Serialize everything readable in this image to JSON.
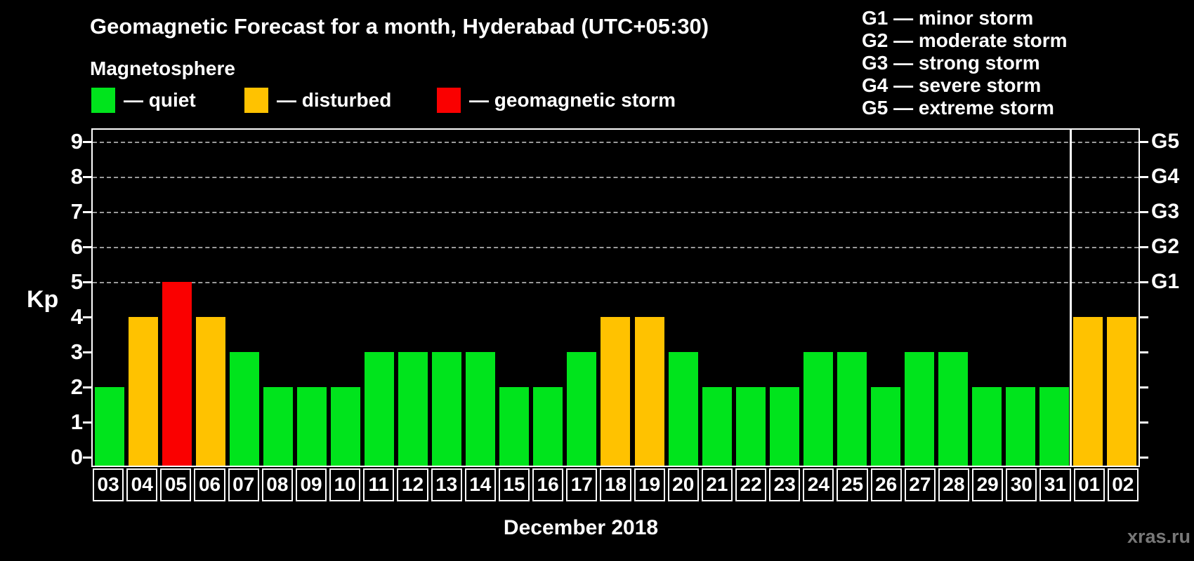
{
  "header": {
    "title": "Geomagnetic Forecast for a month, Hyderabad (UTC+05:30)",
    "subtitle": "Magnetosphere",
    "watermark": "xras.ru"
  },
  "colors": {
    "quiet": "#00e41c",
    "disturbed": "#ffc200",
    "storm": "#fa0000",
    "gridline": "#9a9a9a",
    "axis": "#ffffff",
    "background": "#000000"
  },
  "legend": {
    "items": [
      {
        "status": "quiet",
        "label": "— quiet"
      },
      {
        "status": "disturbed",
        "label": "— disturbed"
      },
      {
        "status": "storm",
        "label": "— geomagnetic storm"
      }
    ]
  },
  "storm_scale_legend": {
    "items": [
      "G1 — minor storm",
      "G2 — moderate storm",
      "G3 — strong storm",
      "G4 — severe storm",
      "G5 — extreme storm"
    ]
  },
  "chart_data": {
    "type": "bar",
    "title": "Geomagnetic Forecast for a month, Hyderabad (UTC+05:30)",
    "xlabel": "December 2018",
    "ylabel": "Kp",
    "ylim": [
      0,
      9
    ],
    "yticks": [
      0,
      1,
      2,
      3,
      4,
      5,
      6,
      7,
      8,
      9
    ],
    "gridlines_at": [
      5,
      6,
      7,
      8,
      9
    ],
    "grid": "dashed horizontal at storm levels only",
    "legend_position": "top",
    "categories": [
      "03",
      "04",
      "05",
      "06",
      "07",
      "08",
      "09",
      "10",
      "11",
      "12",
      "13",
      "14",
      "15",
      "16",
      "17",
      "18",
      "19",
      "20",
      "21",
      "22",
      "23",
      "24",
      "25",
      "26",
      "27",
      "28",
      "29",
      "30",
      "31",
      "01",
      "02"
    ],
    "values": [
      2,
      4,
      5,
      4,
      3,
      2,
      2,
      2,
      3,
      3,
      3,
      3,
      2,
      2,
      3,
      4,
      4,
      3,
      2,
      2,
      2,
      3,
      3,
      2,
      3,
      3,
      2,
      2,
      2,
      4,
      4
    ],
    "statuses": [
      "quiet",
      "disturbed",
      "storm",
      "disturbed",
      "quiet",
      "quiet",
      "quiet",
      "quiet",
      "quiet",
      "quiet",
      "quiet",
      "quiet",
      "quiet",
      "quiet",
      "quiet",
      "disturbed",
      "disturbed",
      "quiet",
      "quiet",
      "quiet",
      "quiet",
      "quiet",
      "quiet",
      "quiet",
      "quiet",
      "quiet",
      "quiet",
      "quiet",
      "quiet",
      "disturbed",
      "disturbed"
    ],
    "right_axis": [
      {
        "label": "G1",
        "kp": 5
      },
      {
        "label": "G2",
        "kp": 6
      },
      {
        "label": "G3",
        "kp": 7
      },
      {
        "label": "G4",
        "kp": 8
      },
      {
        "label": "G5",
        "kp": 9
      }
    ],
    "month_separator_after_index": 28
  }
}
